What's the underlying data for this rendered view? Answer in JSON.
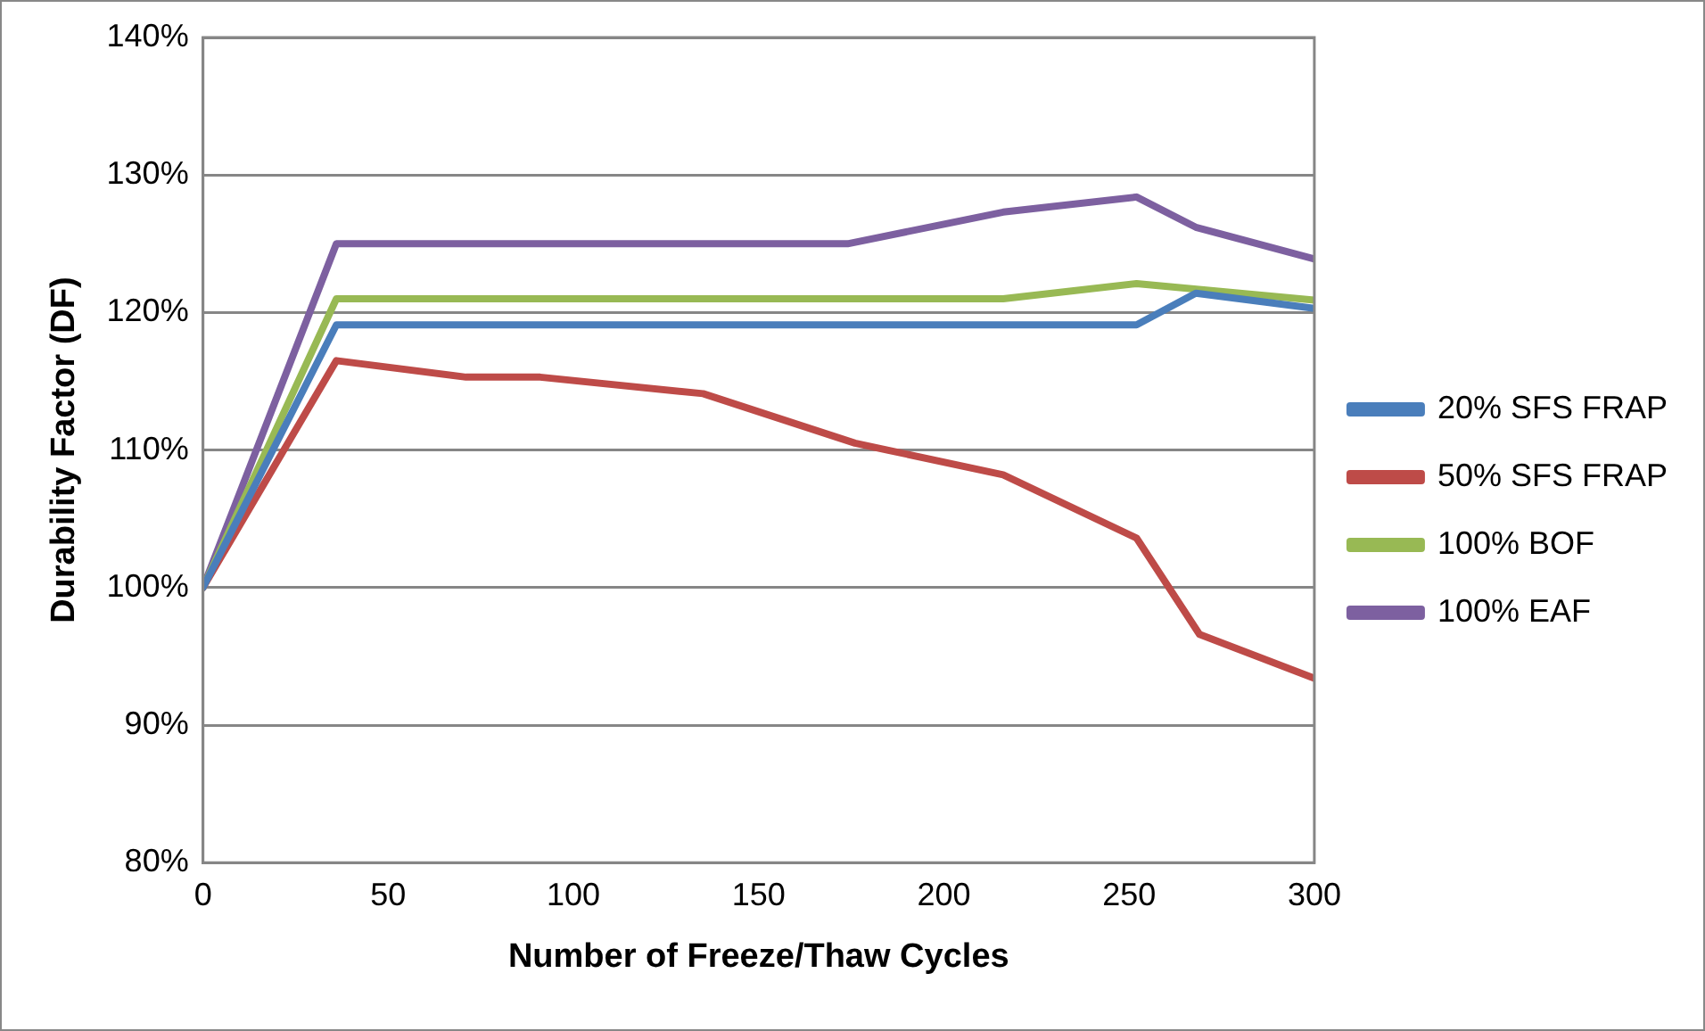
{
  "chart_data": {
    "type": "line",
    "xlabel": "Number of Freeze/Thaw Cycles",
    "ylabel": "Durability Factor (DF)",
    "xlim": [
      0,
      300
    ],
    "xticks": [
      0,
      50,
      100,
      150,
      200,
      250,
      300
    ],
    "ylim": [
      80,
      140
    ],
    "yticks": [
      {
        "value": 80,
        "label": "80%"
      },
      {
        "value": 90,
        "label": "90%"
      },
      {
        "value": 100,
        "label": "100%"
      },
      {
        "value": 110,
        "label": "110%"
      },
      {
        "value": 120,
        "label": "120%"
      },
      {
        "value": 130,
        "label": "130%"
      },
      {
        "value": 140,
        "label": "140%"
      }
    ],
    "grid": "y",
    "legend": "right",
    "marker": "none",
    "line_style": "solid",
    "series": [
      {
        "name": "20% SFS FRAP",
        "color": "#4a7ebb",
        "x": [
          0,
          36,
          252,
          268,
          300
        ],
        "values": [
          100,
          119.1,
          119.1,
          121.4,
          120.3
        ]
      },
      {
        "name": "50% SFS FRAP",
        "color": "#be4b48",
        "x": [
          0,
          36,
          71,
          91,
          135,
          176,
          216,
          252,
          269,
          300
        ],
        "values": [
          100,
          116.5,
          115.3,
          115.3,
          114.1,
          110.5,
          108.2,
          103.6,
          96.6,
          93.4
        ]
      },
      {
        "name": "100% BOF",
        "color": "#98b954",
        "x": [
          0,
          36,
          216,
          252,
          300
        ],
        "values": [
          100,
          121,
          121,
          122.1,
          120.9
        ]
      },
      {
        "name": "100% EAF",
        "color": "#7d60a0",
        "x": [
          0,
          36,
          174,
          216,
          252,
          268,
          300
        ],
        "values": [
          100,
          125,
          125,
          127.3,
          128.4,
          126.2,
          123.9
        ]
      }
    ]
  }
}
